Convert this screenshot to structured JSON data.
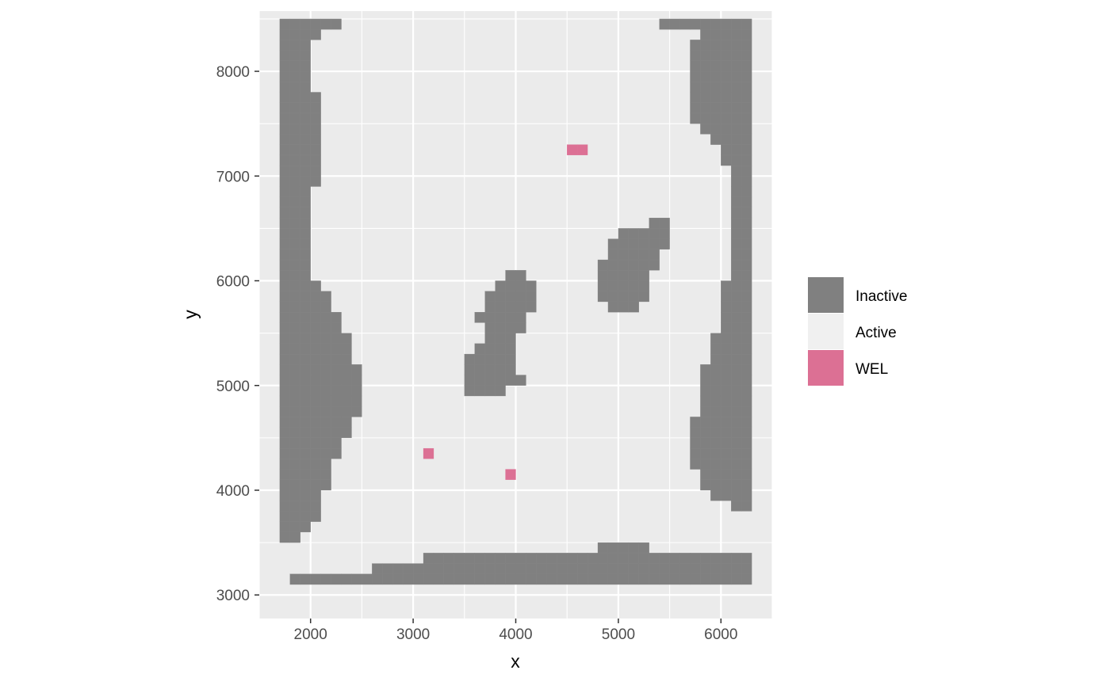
{
  "chart_data": {
    "type": "heatmap",
    "xlabel": "x",
    "ylabel": "y",
    "xlim": [
      1500,
      6500
    ],
    "ylim": [
      2775,
      8575
    ],
    "x_ticks": [
      2000,
      3000,
      4000,
      5000,
      6000
    ],
    "y_ticks": [
      3000,
      4000,
      5000,
      6000,
      7000,
      8000
    ],
    "x_tick_labels": [
      "2000",
      "3000",
      "4000",
      "5000",
      "6000"
    ],
    "y_tick_labels": [
      "3000",
      "4000",
      "5000",
      "6000",
      "7000",
      "8000"
    ],
    "cell_size": 100,
    "grid": true,
    "legend": {
      "position": "right",
      "entries": [
        {
          "label": "Inactive",
          "color": "#808080"
        },
        {
          "label": "Active",
          "color": "#f0f0f0"
        },
        {
          "label": "WEL",
          "color": "#dc7094"
        }
      ]
    },
    "colors": {
      "panel_background": "#ebebeb",
      "grid": "#ffffff",
      "inactive": "#808080",
      "wel": "#dc7094"
    },
    "inactive_runs": [
      {
        "y": 8400,
        "x_ranges": [
          [
            1700,
            2200
          ],
          [
            5400,
            6200
          ]
        ]
      },
      {
        "y": 8300,
        "x_ranges": [
          [
            1700,
            2000
          ],
          [
            5800,
            6200
          ]
        ]
      },
      {
        "y": 8200,
        "x_ranges": [
          [
            1700,
            1900
          ],
          [
            5700,
            6200
          ]
        ]
      },
      {
        "y": 8100,
        "x_ranges": [
          [
            1700,
            1900
          ],
          [
            5700,
            6200
          ]
        ]
      },
      {
        "y": 8000,
        "x_ranges": [
          [
            1700,
            1900
          ],
          [
            5700,
            6200
          ]
        ]
      },
      {
        "y": 7900,
        "x_ranges": [
          [
            1700,
            1900
          ],
          [
            5700,
            6200
          ]
        ]
      },
      {
        "y": 7800,
        "x_ranges": [
          [
            1700,
            1900
          ],
          [
            5700,
            6200
          ]
        ]
      },
      {
        "y": 7700,
        "x_ranges": [
          [
            1700,
            2000
          ],
          [
            5700,
            6200
          ]
        ]
      },
      {
        "y": 7600,
        "x_ranges": [
          [
            1700,
            2000
          ],
          [
            5700,
            6200
          ]
        ]
      },
      {
        "y": 7500,
        "x_ranges": [
          [
            1700,
            2000
          ],
          [
            5700,
            6200
          ]
        ]
      },
      {
        "y": 7400,
        "x_ranges": [
          [
            1700,
            2000
          ],
          [
            5800,
            6200
          ]
        ]
      },
      {
        "y": 7300,
        "x_ranges": [
          [
            1700,
            2000
          ],
          [
            5900,
            6200
          ]
        ]
      },
      {
        "y": 7200,
        "x_ranges": [
          [
            1700,
            2000
          ],
          [
            6000,
            6200
          ]
        ]
      },
      {
        "y": 7100,
        "x_ranges": [
          [
            1700,
            2000
          ],
          [
            6000,
            6200
          ]
        ]
      },
      {
        "y": 7000,
        "x_ranges": [
          [
            1700,
            2000
          ],
          [
            6100,
            6200
          ]
        ]
      },
      {
        "y": 6900,
        "x_ranges": [
          [
            1700,
            2000
          ],
          [
            6100,
            6200
          ]
        ]
      },
      {
        "y": 6800,
        "x_ranges": [
          [
            1700,
            1900
          ],
          [
            6100,
            6200
          ]
        ]
      },
      {
        "y": 6700,
        "x_ranges": [
          [
            1700,
            1900
          ],
          [
            6100,
            6200
          ]
        ]
      },
      {
        "y": 6600,
        "x_ranges": [
          [
            1700,
            1900
          ],
          [
            6100,
            6200
          ]
        ]
      },
      {
        "y": 6500,
        "x_ranges": [
          [
            1700,
            1900
          ],
          [
            5300,
            5400
          ],
          [
            6100,
            6200
          ]
        ]
      },
      {
        "y": 6400,
        "x_ranges": [
          [
            1700,
            1900
          ],
          [
            5000,
            5400
          ],
          [
            6100,
            6200
          ]
        ]
      },
      {
        "y": 6300,
        "x_ranges": [
          [
            1700,
            1900
          ],
          [
            4900,
            5400
          ],
          [
            6100,
            6200
          ]
        ]
      },
      {
        "y": 6200,
        "x_ranges": [
          [
            1700,
            1900
          ],
          [
            4900,
            5300
          ],
          [
            6100,
            6200
          ]
        ]
      },
      {
        "y": 6100,
        "x_ranges": [
          [
            1700,
            1900
          ],
          [
            4800,
            5300
          ],
          [
            6100,
            6200
          ]
        ]
      },
      {
        "y": 6000,
        "x_ranges": [
          [
            1700,
            1900
          ],
          [
            3900,
            4000
          ],
          [
            4800,
            5200
          ],
          [
            6100,
            6200
          ]
        ]
      },
      {
        "y": 5900,
        "x_ranges": [
          [
            1700,
            2000
          ],
          [
            3800,
            4100
          ],
          [
            4800,
            5200
          ],
          [
            6000,
            6200
          ]
        ]
      },
      {
        "y": 5800,
        "x_ranges": [
          [
            1700,
            2100
          ],
          [
            3700,
            4100
          ],
          [
            4800,
            5200
          ],
          [
            6000,
            6200
          ]
        ]
      },
      {
        "y": 5700,
        "x_ranges": [
          [
            1700,
            2100
          ],
          [
            3700,
            4100
          ],
          [
            4900,
            5100
          ],
          [
            6000,
            6200
          ]
        ]
      },
      {
        "y": 5600,
        "x_ranges": [
          [
            1700,
            2200
          ],
          [
            3600,
            4000
          ],
          [
            6000,
            6200
          ]
        ]
      },
      {
        "y": 5500,
        "x_ranges": [
          [
            1700,
            2200
          ],
          [
            3700,
            4000
          ],
          [
            6000,
            6200
          ]
        ]
      },
      {
        "y": 5400,
        "x_ranges": [
          [
            1700,
            2300
          ],
          [
            3700,
            3900
          ],
          [
            5900,
            6200
          ]
        ]
      },
      {
        "y": 5300,
        "x_ranges": [
          [
            1700,
            2300
          ],
          [
            3600,
            3900
          ],
          [
            5900,
            6200
          ]
        ]
      },
      {
        "y": 5200,
        "x_ranges": [
          [
            1700,
            2300
          ],
          [
            3500,
            3900
          ],
          [
            5900,
            6200
          ]
        ]
      },
      {
        "y": 5100,
        "x_ranges": [
          [
            1700,
            2400
          ],
          [
            3500,
            3900
          ],
          [
            5800,
            6200
          ]
        ]
      },
      {
        "y": 5000,
        "x_ranges": [
          [
            1700,
            2400
          ],
          [
            3500,
            4000
          ],
          [
            5800,
            6200
          ]
        ]
      },
      {
        "y": 4900,
        "x_ranges": [
          [
            1700,
            2400
          ],
          [
            3500,
            3800
          ],
          [
            5800,
            6200
          ]
        ]
      },
      {
        "y": 4800,
        "x_ranges": [
          [
            1700,
            2400
          ],
          [
            5800,
            6200
          ]
        ]
      },
      {
        "y": 4700,
        "x_ranges": [
          [
            1700,
            2400
          ],
          [
            5800,
            6200
          ]
        ]
      },
      {
        "y": 4600,
        "x_ranges": [
          [
            1700,
            2300
          ],
          [
            5700,
            6200
          ]
        ]
      },
      {
        "y": 4500,
        "x_ranges": [
          [
            1700,
            2300
          ],
          [
            5700,
            6200
          ]
        ]
      },
      {
        "y": 4400,
        "x_ranges": [
          [
            1700,
            2200
          ],
          [
            5700,
            6200
          ]
        ]
      },
      {
        "y": 4300,
        "x_ranges": [
          [
            1700,
            2200
          ],
          [
            5700,
            6200
          ]
        ]
      },
      {
        "y": 4200,
        "x_ranges": [
          [
            1700,
            2100
          ],
          [
            5700,
            6200
          ]
        ]
      },
      {
        "y": 4100,
        "x_ranges": [
          [
            1700,
            2100
          ],
          [
            5800,
            6200
          ]
        ]
      },
      {
        "y": 4000,
        "x_ranges": [
          [
            1700,
            2100
          ],
          [
            5800,
            6200
          ]
        ]
      },
      {
        "y": 3900,
        "x_ranges": [
          [
            1700,
            2000
          ],
          [
            5900,
            6200
          ]
        ]
      },
      {
        "y": 3800,
        "x_ranges": [
          [
            1700,
            2000
          ],
          [
            6100,
            6200
          ]
        ]
      },
      {
        "y": 3700,
        "x_ranges": [
          [
            1700,
            2000
          ]
        ]
      },
      {
        "y": 3600,
        "x_ranges": [
          [
            1700,
            1900
          ]
        ]
      },
      {
        "y": 3500,
        "x_ranges": [
          [
            1700,
            1800
          ]
        ]
      },
      {
        "y": 3400,
        "x_ranges": [
          [
            4800,
            5200
          ]
        ]
      },
      {
        "y": 3300,
        "x_ranges": [
          [
            3100,
            6200
          ]
        ]
      },
      {
        "y": 3200,
        "x_ranges": [
          [
            2600,
            6200
          ]
        ]
      },
      {
        "y": 3100,
        "x_ranges": [
          [
            1800,
            6200
          ]
        ]
      }
    ],
    "wel_cells": [
      {
        "x": 4500,
        "y": 7200
      },
      {
        "x": 4600,
        "y": 7200
      },
      {
        "x": 3100,
        "y": 4300
      },
      {
        "x": 3900,
        "y": 4100
      }
    ]
  }
}
